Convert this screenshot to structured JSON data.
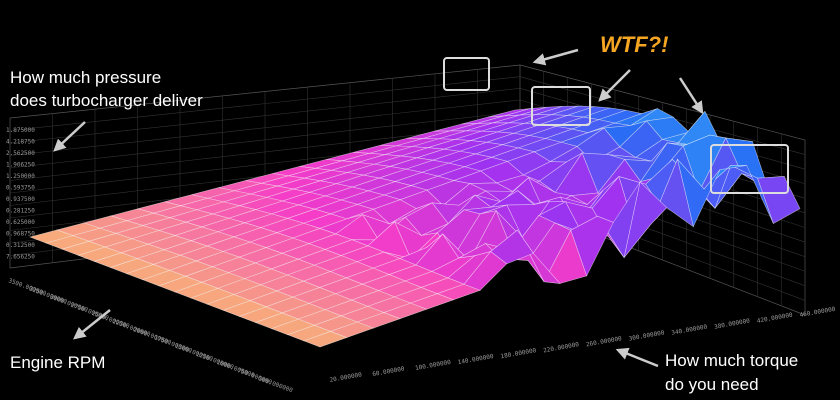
{
  "annotations": {
    "pressure": [
      "How much pressure",
      "does turbocharger deliver"
    ],
    "wtf": "WTF?!",
    "rpm": "Engine RPM",
    "torque": [
      "How much torque",
      "do you need"
    ]
  },
  "axes": {
    "left": [
      "1.875000",
      "4.218750",
      "2.562500",
      "1.906250",
      "1.250000",
      "0.593750",
      "0.937500",
      "0.281250",
      "0.625000",
      "0.968750",
      "0.312500",
      "7.656250"
    ],
    "rpm": [
      "3500.000000",
      "3250.000000",
      "3000.000000",
      "2750.000000",
      "2500.000000",
      "2250.000000",
      "2000.000000",
      "1750.000000",
      "1500.000000",
      "1250.000000",
      "1000.000000",
      "750.000000",
      "500.000000"
    ],
    "torque": [
      "20.000000",
      "60.000000",
      "100.000000",
      "140.000000",
      "180.000000",
      "220.000000",
      "260.000000",
      "300.000000",
      "340.000000",
      "380.000000",
      "420.000000",
      "460.000000"
    ]
  }
}
